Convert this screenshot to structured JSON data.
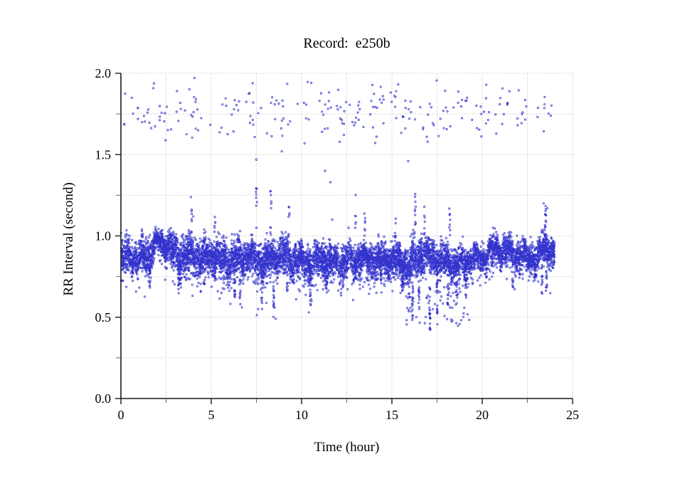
{
  "chart_data": {
    "type": "scatter",
    "title": "Record:  e250b",
    "xlabel": "Time (hour)",
    "ylabel": "RR Interval (second)",
    "xlim": [
      0,
      25
    ],
    "ylim": [
      0.0,
      2.0
    ],
    "x_major_ticks": [
      0,
      5,
      10,
      15,
      20,
      25
    ],
    "x_major_tick_labels": [
      "0",
      "5",
      "10",
      "15",
      "20",
      "25"
    ],
    "x_minor_ticks": [
      2.5,
      7.5,
      12.5,
      17.5,
      22.5
    ],
    "y_major_ticks": [
      0.0,
      0.5,
      1.0,
      1.5,
      2.0
    ],
    "y_major_tick_labels": [
      "0.0",
      "0.5",
      "1.0",
      "1.5",
      "2.0"
    ],
    "y_minor_ticks": [
      0.25,
      0.75,
      1.25,
      1.75
    ],
    "grid": {
      "style": "dotted",
      "color": "#b3b3b3",
      "x_interval": 2.5,
      "y_interval": 0.25
    },
    "marker": {
      "shape": "open-circle",
      "color": "#3232cd",
      "radius_px": 1.15
    },
    "legend": null,
    "axis_color": "#1a1a1a",
    "minor_tick_color": "#666666",
    "series": [
      {
        "name": "rr-intervals-main-band",
        "kind": "band",
        "count": 8500,
        "description": "dense band of normal RR intervals fluctuating around 0.85 s",
        "profile": {
          "t": [
            0,
            0.5,
            1,
            1.5,
            2,
            2.5,
            3,
            3.5,
            4,
            4.5,
            5,
            5.5,
            6,
            6.5,
            7,
            7.5,
            8,
            8.5,
            9,
            9.5,
            10,
            10.5,
            11,
            11.5,
            12,
            12.5,
            13,
            13.5,
            14,
            14.5,
            15,
            15.5,
            16,
            16.5,
            17,
            17.5,
            18,
            18.5,
            19,
            19.5,
            20,
            20.5,
            21,
            21.5,
            22,
            22.5,
            23,
            23.5,
            24
          ],
          "mean": [
            0.84,
            0.88,
            0.86,
            0.88,
            0.96,
            0.95,
            0.89,
            0.86,
            0.89,
            0.86,
            0.88,
            0.86,
            0.84,
            0.86,
            0.88,
            0.86,
            0.85,
            0.87,
            0.88,
            0.86,
            0.85,
            0.83,
            0.85,
            0.84,
            0.85,
            0.85,
            0.86,
            0.86,
            0.84,
            0.85,
            0.86,
            0.84,
            0.82,
            0.88,
            0.88,
            0.86,
            0.84,
            0.82,
            0.84,
            0.86,
            0.86,
            0.91,
            0.92,
            0.9,
            0.88,
            0.87,
            0.86,
            0.94,
            0.87
          ],
          "halfwidth": [
            0.13,
            0.1,
            0.11,
            0.12,
            0.06,
            0.08,
            0.11,
            0.12,
            0.1,
            0.11,
            0.1,
            0.11,
            0.12,
            0.11,
            0.09,
            0.12,
            0.12,
            0.11,
            0.1,
            0.11,
            0.1,
            0.11,
            0.1,
            0.11,
            0.1,
            0.1,
            0.1,
            0.1,
            0.1,
            0.1,
            0.1,
            0.11,
            0.13,
            0.11,
            0.1,
            0.11,
            0.11,
            0.1,
            0.1,
            0.09,
            0.08,
            0.09,
            0.09,
            0.09,
            0.09,
            0.09,
            0.1,
            0.1,
            0.08
          ]
        }
      },
      {
        "name": "long-rr-outliers-upper",
        "kind": "cloud",
        "count": 240,
        "t_range": [
          0.1,
          23.9
        ],
        "y_center": 1.76,
        "y_halfspread": 0.22,
        "y_clip": [
          1.55,
          2.0
        ],
        "description": "sparse scatter of long RR intervals around 1.6-2.0 s across whole record"
      },
      {
        "name": "short-rr-outlier-cluster",
        "kind": "cloud_uniform",
        "count": 48,
        "t_range": [
          15.8,
          19.3
        ],
        "y_range": [
          0.44,
          0.66
        ],
        "description": "cluster of short RR intervals near 0.5 s between hours 16 and 19"
      },
      {
        "name": "downward-spikes",
        "kind": "spikes",
        "items": [
          [
            1.6,
            0.68,
            0.8,
            12
          ],
          [
            3.2,
            0.66,
            0.8,
            12
          ],
          [
            4.6,
            0.7,
            0.8,
            10
          ],
          [
            6.3,
            0.62,
            0.78,
            14
          ],
          [
            6.6,
            0.55,
            0.75,
            10
          ],
          [
            7.8,
            0.58,
            0.76,
            12
          ],
          [
            8.45,
            0.5,
            0.74,
            14
          ],
          [
            9.2,
            0.66,
            0.78,
            10
          ],
          [
            10.5,
            0.57,
            0.75,
            12
          ],
          [
            11.4,
            0.65,
            0.76,
            10
          ],
          [
            12.3,
            0.68,
            0.78,
            10
          ],
          [
            13.2,
            0.66,
            0.78,
            10
          ],
          [
            14.4,
            0.68,
            0.78,
            10
          ],
          [
            15.6,
            0.66,
            0.76,
            10
          ],
          [
            16.15,
            0.45,
            0.72,
            18
          ],
          [
            16.5,
            0.55,
            0.72,
            12
          ],
          [
            17.1,
            0.42,
            0.7,
            20
          ],
          [
            17.5,
            0.52,
            0.72,
            12
          ],
          [
            18.1,
            0.55,
            0.72,
            12
          ],
          [
            18.6,
            0.58,
            0.72,
            10
          ],
          [
            19.1,
            0.62,
            0.74,
            10
          ],
          [
            21.7,
            0.68,
            0.78,
            8
          ],
          [
            23.3,
            0.62,
            0.76,
            10
          ],
          [
            23.55,
            0.66,
            0.8,
            10
          ]
        ]
      },
      {
        "name": "upward-spikes",
        "kind": "spikes",
        "items": [
          [
            3.9,
            1.02,
            1.25,
            8
          ],
          [
            5.2,
            1.0,
            1.13,
            6
          ],
          [
            7.5,
            1.05,
            1.3,
            8
          ],
          [
            8.3,
            1.0,
            1.28,
            10
          ],
          [
            9.3,
            1.0,
            1.18,
            6
          ],
          [
            13.0,
            1.0,
            1.28,
            6
          ],
          [
            13.5,
            1.0,
            1.15,
            6
          ],
          [
            15.2,
            0.98,
            1.15,
            6
          ],
          [
            16.3,
            1.0,
            1.3,
            10
          ],
          [
            16.8,
            1.0,
            1.22,
            8
          ],
          [
            18.2,
            0.98,
            1.18,
            8
          ],
          [
            23.5,
            1.05,
            1.22,
            12
          ]
        ]
      },
      {
        "name": "isolated-points",
        "kind": "points",
        "points": [
          [
            6.7,
            0.56
          ],
          [
            7.6,
            0.55
          ],
          [
            8.5,
            0.56
          ],
          [
            8.56,
            0.49
          ],
          [
            9.7,
            0.61
          ],
          [
            9.9,
            0.66
          ],
          [
            10.4,
            0.53
          ],
          [
            10.5,
            0.58
          ],
          [
            10.55,
            0.6
          ],
          [
            7.5,
            1.47
          ],
          [
            11.3,
            1.4
          ],
          [
            11.6,
            1.33
          ],
          [
            15.9,
            1.46
          ],
          [
            11.7,
            1.1
          ],
          [
            12.6,
            1.05
          ],
          [
            20.6,
            1.05
          ],
          [
            23.4,
            1.2
          ],
          [
            23.6,
            1.17
          ],
          [
            4.0,
            1.12
          ],
          [
            8.9,
            1.52
          ]
        ]
      }
    ]
  }
}
